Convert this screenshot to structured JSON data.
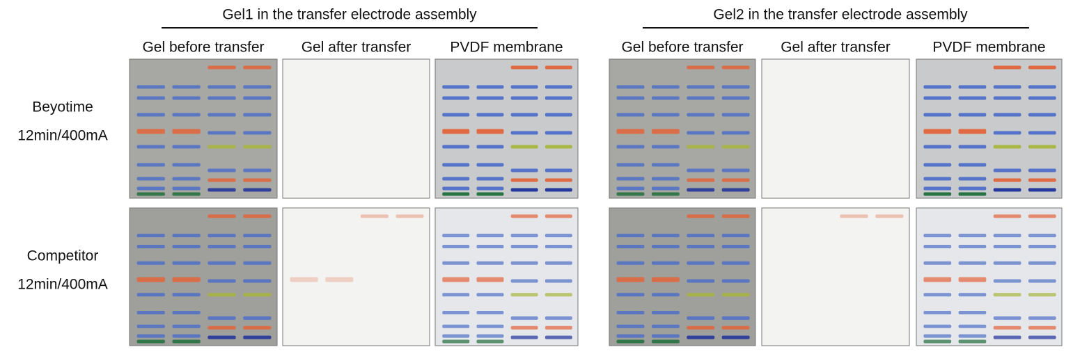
{
  "groups": [
    {
      "title": "Gel1 in the transfer electrode assembly",
      "columns": [
        "Gel before transfer",
        "Gel after transfer",
        "PVDF membrane"
      ]
    },
    {
      "title": "Gel2 in the transfer electrode assembly",
      "columns": [
        "Gel before transfer",
        "Gel after transfer",
        "PVDF membrane"
      ]
    }
  ],
  "rows": [
    {
      "lines": [
        "Beyotime",
        "12min/400mA"
      ]
    },
    {
      "lines": [
        "Competitor",
        "12min/400mA"
      ]
    }
  ]
}
